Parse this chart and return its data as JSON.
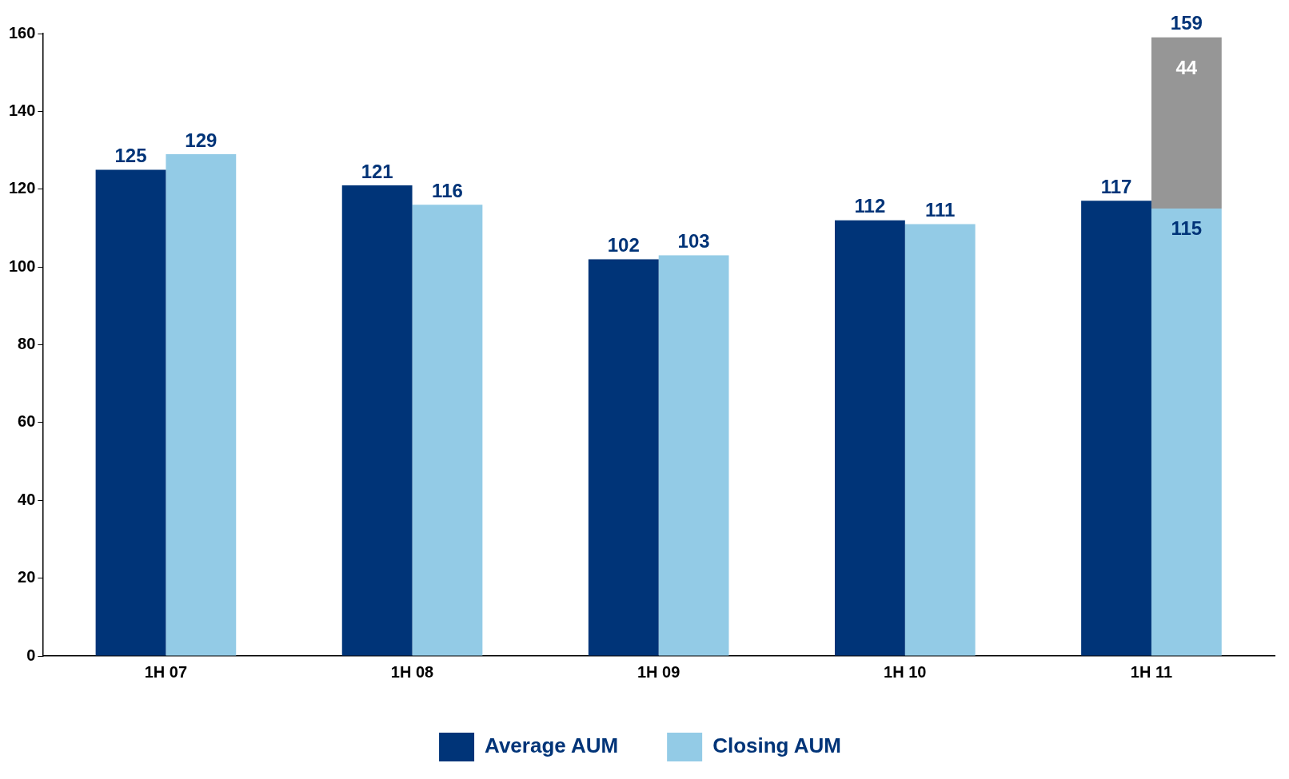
{
  "chart_data": {
    "type": "bar",
    "categories": [
      "1H 07",
      "1H 08",
      "1H 09",
      "1H 10",
      "1H 11"
    ],
    "series": [
      {
        "name": "Average AUM",
        "color": "#003478",
        "values": [
          125,
          121,
          102,
          112,
          117
        ]
      },
      {
        "name": "Closing AUM",
        "color": "#93cbe6",
        "values": [
          129,
          116,
          103,
          111,
          115
        ]
      },
      {
        "color": "#969696",
        "values": [
          null,
          null,
          null,
          null,
          44
        ],
        "base": [
          null,
          null,
          null,
          null,
          115
        ]
      }
    ],
    "ylim": [
      0,
      160
    ],
    "yticks": [
      0,
      20,
      40,
      60,
      80,
      100,
      120,
      140,
      160
    ],
    "grid": false,
    "legend": "bottom",
    "data_labels": true,
    "annotations": [
      {
        "text": "159",
        "x": "1H 11",
        "y": 159
      }
    ]
  }
}
